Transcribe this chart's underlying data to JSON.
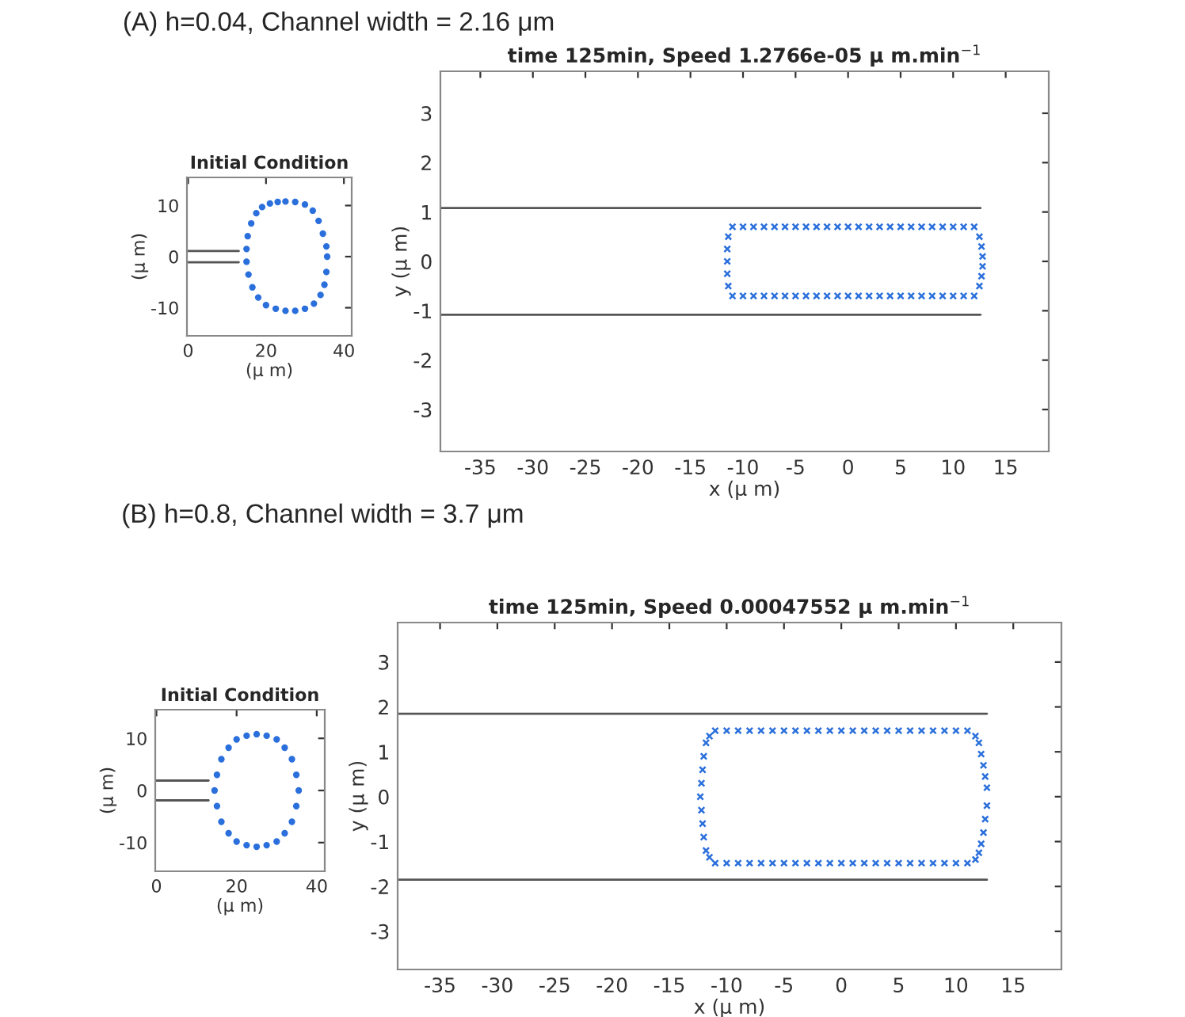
{
  "chart_data": [
    {
      "type": "line",
      "title": "Initial Condition",
      "xlabel": "(μ m)",
      "ylabel": "(μ m)",
      "annotations": [
        "(A) h=0.04, Channel width = 2.16 μm"
      ],
      "xlim": [
        -0.3,
        42
      ],
      "ylim": [
        -15.5,
        15.5
      ],
      "xticks": [
        0,
        20,
        40
      ],
      "yticks": [
        -10,
        0,
        10
      ],
      "series": [
        {
          "color": "#555555",
          "x": [
            0,
            13
          ],
          "values": [
            1.1,
            1.1
          ]
        },
        {
          "color": "#555555",
          "x": [
            0,
            13
          ],
          "values": [
            -1.1,
            -1.1
          ]
        },
        {
          "type": "scatter",
          "marker": "circle",
          "color": "#2a6fdb",
          "x": [
            25,
            27.5,
            30,
            32,
            33.5,
            34.6,
            35.5,
            35.7,
            35.5,
            35,
            34,
            32.3,
            30,
            27.5,
            25,
            22.5,
            20,
            18,
            16.5,
            15.5,
            15,
            15,
            15.3,
            16.2,
            17.5,
            19,
            21,
            23
          ],
          "values": [
            10.8,
            10.7,
            10.2,
            9,
            7,
            4.5,
            2,
            0,
            -3,
            -5.5,
            -7.5,
            -9.2,
            -10.2,
            -10.6,
            -10.6,
            -10.2,
            -9.5,
            -8,
            -6,
            -3.5,
            -1,
            1.5,
            4,
            6.5,
            8.5,
            9.7,
            10.4,
            10.7
          ]
        }
      ]
    },
    {
      "type": "line",
      "title": "time 125min, Speed 1.2766e-05 μ m.min$^{−1}$",
      "xlabel": "x (μ m)",
      "ylabel": "y (μ m)",
      "xlim": [
        -38.8,
        19.1
      ],
      "ylim": [
        -3.85,
        3.85
      ],
      "xticks": [
        -35,
        -30,
        -25,
        -20,
        -15,
        -10,
        -5,
        0,
        5,
        10,
        15
      ],
      "yticks": [
        -3,
        -2,
        -1,
        0,
        1,
        2,
        3
      ],
      "series": [
        {
          "color": "#555555",
          "x": [
            -38.8,
            12.6
          ],
          "values": [
            1.08,
            1.08
          ]
        },
        {
          "color": "#555555",
          "x": [
            -38.8,
            12.6
          ],
          "values": [
            -1.08,
            -1.08
          ]
        },
        {
          "type": "scatter",
          "marker": "cross",
          "color": "#2a6fdb",
          "x": [
            -11,
            -10,
            -9,
            -8,
            -7,
            -6,
            -5,
            -4,
            -3,
            -2,
            -1,
            0,
            1,
            2,
            3,
            4,
            5,
            6,
            7,
            8,
            9,
            10,
            11,
            12,
            12.5,
            12.7,
            12.8,
            12.8,
            12.7,
            12.5,
            12,
            11,
            10,
            9,
            8,
            7,
            6,
            5,
            4,
            3,
            2,
            1,
            0,
            -1,
            -2,
            -3,
            -4,
            -5,
            -6,
            -7,
            -8,
            -9,
            -10,
            -11,
            -11.4,
            -11.5,
            -11.5,
            -11.5,
            -11.4
          ],
          "values": [
            0.7,
            0.7,
            0.7,
            0.7,
            0.7,
            0.7,
            0.7,
            0.7,
            0.7,
            0.7,
            0.7,
            0.7,
            0.7,
            0.7,
            0.7,
            0.7,
            0.7,
            0.7,
            0.7,
            0.7,
            0.7,
            0.7,
            0.7,
            0.7,
            0.5,
            0.3,
            0.1,
            -0.1,
            -0.3,
            -0.5,
            -0.7,
            -0.7,
            -0.7,
            -0.7,
            -0.7,
            -0.7,
            -0.7,
            -0.7,
            -0.7,
            -0.7,
            -0.7,
            -0.7,
            -0.7,
            -0.7,
            -0.7,
            -0.7,
            -0.7,
            -0.7,
            -0.7,
            -0.7,
            -0.7,
            -0.7,
            -0.7,
            -0.7,
            -0.5,
            -0.25,
            0,
            0.25,
            0.5
          ]
        }
      ]
    },
    {
      "type": "line",
      "title": "Initial Condition",
      "xlabel": "(μ m)",
      "ylabel": "(μ m)",
      "annotations": [
        "(B) h=0.8, Channel width = 3.7 μm"
      ],
      "xlim": [
        -0.3,
        42
      ],
      "ylim": [
        -15.5,
        15.5
      ],
      "xticks": [
        0,
        20,
        40
      ],
      "yticks": [
        -10,
        0,
        10
      ],
      "series": [
        {
          "color": "#555555",
          "x": [
            0,
            13
          ],
          "values": [
            1.9,
            1.9
          ]
        },
        {
          "color": "#555555",
          "x": [
            0,
            13
          ],
          "values": [
            -1.9,
            -1.9
          ]
        },
        {
          "type": "scatter",
          "marker": "circle",
          "color": "#2a6fdb",
          "x": [
            25,
            27.5,
            30,
            32,
            33.8,
            34.9,
            35.5,
            34.9,
            33.8,
            32,
            30,
            27.5,
            25,
            22.5,
            20,
            18,
            16.2,
            15.1,
            14.5,
            15.1,
            16.2,
            18,
            20,
            22.5
          ],
          "values": [
            10.8,
            10.5,
            9.8,
            8.2,
            6,
            3,
            0,
            -3,
            -6,
            -8.2,
            -9.8,
            -10.5,
            -10.8,
            -10.5,
            -9.8,
            -8.2,
            -6,
            -3,
            0,
            3,
            6,
            8.2,
            9.8,
            10.5
          ]
        }
      ]
    },
    {
      "type": "line",
      "title": "time 125min, Speed 0.00047552 μ m.min$^{−1}$",
      "xlabel": "x (μ m)",
      "ylabel": "y (μ m)",
      "xlim": [
        -38.7,
        19.2
      ],
      "ylim": [
        -3.85,
        3.88
      ],
      "xticks": [
        -35,
        -30,
        -25,
        -20,
        -15,
        -10,
        -5,
        0,
        5,
        10,
        15
      ],
      "yticks": [
        -3,
        -2,
        -1,
        0,
        1,
        2,
        3
      ],
      "series": [
        {
          "color": "#555555",
          "x": [
            -38.7,
            12.7
          ],
          "values": [
            1.85,
            1.85
          ]
        },
        {
          "color": "#555555",
          "x": [
            -38.7,
            12.7
          ],
          "values": [
            -1.85,
            -1.85
          ]
        },
        {
          "type": "scatter",
          "marker": "cross",
          "color": "#2a6fdb",
          "x": [
            -11,
            -10,
            -9,
            -8,
            -7,
            -6,
            -5,
            -4,
            -3,
            -2,
            -1,
            0,
            1,
            2,
            3,
            4,
            5,
            6,
            7,
            8,
            9,
            10,
            11,
            11.7,
            12.0,
            12.2,
            12.4,
            12.55,
            12.7,
            12.7,
            12.55,
            12.4,
            12.2,
            12.0,
            11.7,
            11,
            10,
            9,
            8,
            7,
            6,
            5,
            4,
            3,
            2,
            1,
            0,
            -1,
            -2,
            -3,
            -4,
            -5,
            -6,
            -7,
            -8,
            -9,
            -10,
            -11,
            -11.5,
            -11.8,
            -12.0,
            -12.1,
            -12.2,
            -12.3,
            -12.2,
            -12.1,
            -12.0,
            -11.8,
            -11.5
          ],
          "values": [
            1.47,
            1.47,
            1.47,
            1.47,
            1.47,
            1.47,
            1.47,
            1.47,
            1.47,
            1.47,
            1.47,
            1.47,
            1.47,
            1.47,
            1.47,
            1.47,
            1.47,
            1.47,
            1.47,
            1.47,
            1.47,
            1.47,
            1.47,
            1.35,
            1.2,
            0.95,
            0.7,
            0.45,
            0.2,
            -0.2,
            -0.5,
            -0.8,
            -1.05,
            -1.25,
            -1.4,
            -1.48,
            -1.48,
            -1.48,
            -1.48,
            -1.48,
            -1.48,
            -1.48,
            -1.48,
            -1.48,
            -1.48,
            -1.48,
            -1.48,
            -1.48,
            -1.48,
            -1.48,
            -1.48,
            -1.48,
            -1.48,
            -1.48,
            -1.48,
            -1.48,
            -1.48,
            -1.48,
            -1.35,
            -1.2,
            -0.9,
            -0.6,
            -0.3,
            0,
            0.3,
            0.6,
            0.9,
            1.2,
            1.35
          ]
        }
      ]
    }
  ]
}
